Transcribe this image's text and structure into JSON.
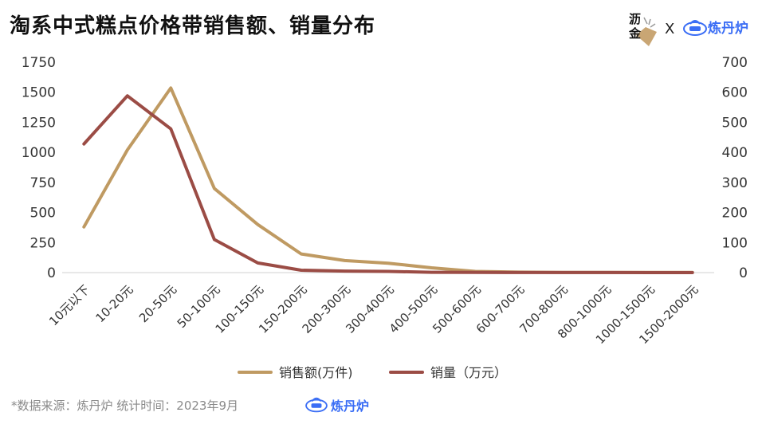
{
  "header": {
    "title": "淘系中式糕点价格带销售额、销量分布",
    "brand_left_line1": "沥",
    "brand_left_line2": "金",
    "brand_x": "X",
    "brand_right": "炼丹炉",
    "brand_right_icon": "data-cloud-icon"
  },
  "footer": {
    "source": "*数据来源：炼丹炉 统计时间：2023年9月",
    "logo_text": "炼丹炉"
  },
  "colors": {
    "sales_amount": "#bf9a62",
    "sales_volume": "#9b4c45",
    "brand_blue": "#3b6ef5"
  },
  "chart_data": {
    "type": "line",
    "categories": [
      "10元以下",
      "10-20元",
      "20-50元",
      "50-100元",
      "100-150元",
      "150-200元",
      "200-300元",
      "300-400元",
      "400-500元",
      "500-600元",
      "600-700元",
      "700-800元",
      "800-1000元",
      "1000-1500元",
      "1500-2000元"
    ],
    "series": [
      {
        "name": "销售额(万件)",
        "axis": "left",
        "values": [
          380,
          1020,
          1535,
          700,
          400,
          155,
          100,
          78,
          40,
          10,
          4,
          2,
          2,
          1,
          1
        ]
      },
      {
        "name": "销量（万元）",
        "axis": "right",
        "values": [
          428,
          588,
          478,
          110,
          32,
          8,
          5,
          4,
          1,
          0.5,
          0.3,
          0.2,
          0.2,
          0.1,
          0.1
        ]
      }
    ],
    "y_left": {
      "min": 0,
      "max": 1750,
      "ticks": [
        "0",
        "250",
        "500",
        "750",
        "1000",
        "1250",
        "1500",
        "1750"
      ]
    },
    "y_right": {
      "min": 0,
      "max": 700,
      "ticks": [
        "0",
        "100",
        "200",
        "300",
        "400",
        "500",
        "600",
        "700"
      ]
    },
    "grid": false,
    "legend_position": "bottom"
  }
}
